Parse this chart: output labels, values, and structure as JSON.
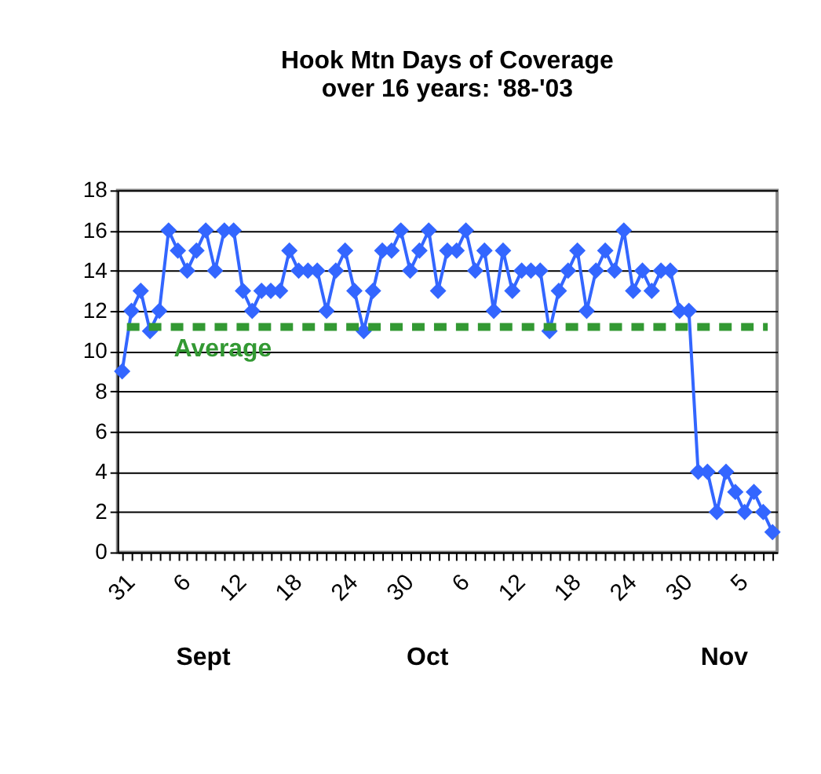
{
  "chart_data": {
    "type": "line",
    "title": [
      "Hook Mtn Days of Coverage",
      "over 16 years:  '88-'03"
    ],
    "categories": [
      "31",
      null,
      null,
      null,
      null,
      null,
      "6",
      null,
      null,
      null,
      null,
      null,
      "12",
      null,
      null,
      null,
      null,
      null,
      "18",
      null,
      null,
      null,
      null,
      null,
      "24",
      null,
      null,
      null,
      null,
      null,
      "30",
      null,
      null,
      null,
      null,
      null,
      "6",
      null,
      null,
      null,
      null,
      null,
      "12",
      null,
      null,
      null,
      null,
      null,
      "18",
      null,
      null,
      null,
      null,
      null,
      "24",
      null,
      null,
      null,
      null,
      null,
      "30",
      null,
      null,
      null,
      null,
      null,
      "5",
      null,
      null,
      null,
      null
    ],
    "series": [
      {
        "color": "#3366ff",
        "values": [
          9,
          12,
          13,
          11,
          12,
          16,
          15,
          14,
          15,
          16,
          14,
          16,
          16,
          13,
          12,
          13,
          13,
          13,
          15,
          14,
          14,
          14,
          12,
          14,
          15,
          13,
          11,
          13,
          15,
          15,
          16,
          14,
          15,
          16,
          13,
          15,
          15,
          16,
          14,
          15,
          12,
          15,
          13,
          14,
          14,
          14,
          11,
          13,
          14,
          15,
          12,
          14,
          15,
          14,
          16,
          13,
          14,
          13,
          14,
          14,
          12,
          12,
          4,
          4,
          2,
          4,
          3,
          2,
          3,
          2,
          1
        ]
      }
    ],
    "ylim": [
      0,
      18
    ],
    "yticks": [
      0,
      2,
      4,
      6,
      8,
      10,
      12,
      14,
      16,
      18
    ],
    "grid": "y",
    "marker": "diamond",
    "line_style": "solid",
    "ref_lines": [
      {
        "axis": "y",
        "value": 11.2,
        "label": "Average",
        "color": "#339933",
        "line_style": "dashed"
      }
    ],
    "annotations": [
      "Sept",
      "Oct",
      "Nov"
    ]
  }
}
